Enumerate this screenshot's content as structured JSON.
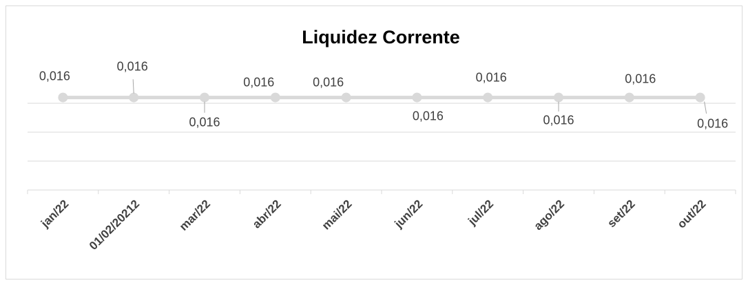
{
  "chart_data": {
    "type": "line",
    "title": "Liquidez Corrente",
    "categories": [
      "jan/22",
      "01/02/20212",
      "mar/22",
      "abr/22",
      "mai/22",
      "jun/22",
      "jul/22",
      "ago/22",
      "set/22",
      "out/22"
    ],
    "series": [
      {
        "name": "Liquidez Corrente",
        "color": "#d9d9d9",
        "values": [
          0.016,
          0.016,
          0.016,
          0.016,
          0.016,
          0.016,
          0.016,
          0.016,
          0.016,
          0.016
        ],
        "value_labels": [
          "0,016",
          "0,016",
          "0,016",
          "0,016",
          "0,016",
          "0,016",
          "0,016",
          "0,016",
          "0,016",
          "0,016"
        ]
      }
    ],
    "ylim": [
      0,
      0.02
    ],
    "yticks": [
      0,
      0.005,
      0.01,
      0.015
    ],
    "grid": true
  }
}
